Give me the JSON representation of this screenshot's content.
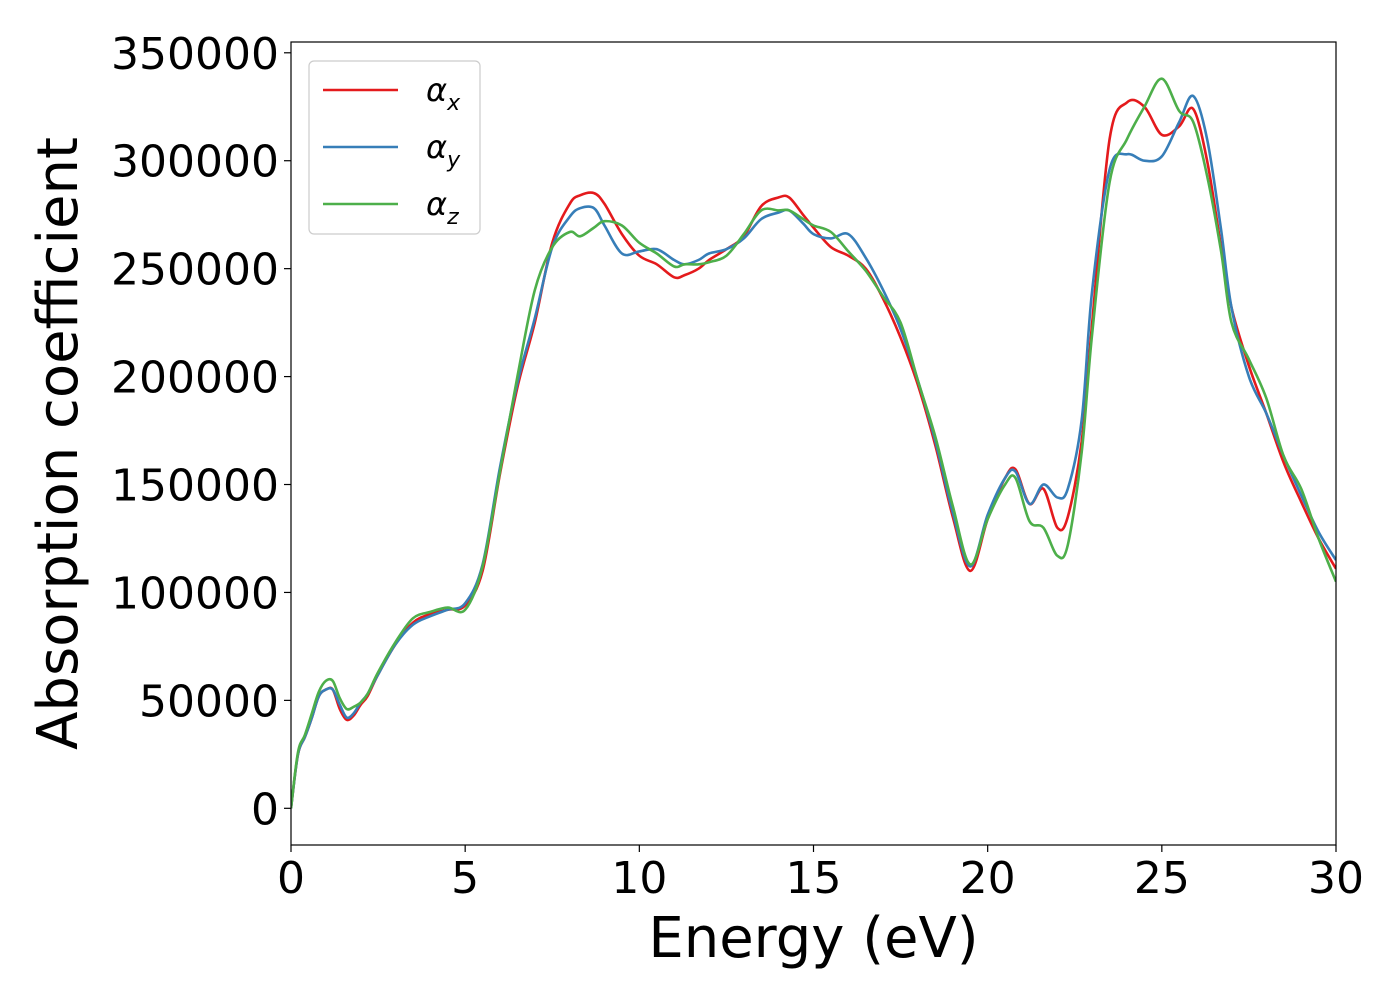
{
  "chart_data": {
    "type": "line",
    "title": "",
    "xlabel": "Energy (eV)",
    "ylabel": "Absorption coefficient",
    "xlim": [
      0,
      30
    ],
    "ylim": [
      -17000,
      355000
    ],
    "xticks": [
      0,
      5,
      10,
      15,
      20,
      25,
      30
    ],
    "yticks": [
      0,
      50000,
      100000,
      150000,
      200000,
      250000,
      300000,
      350000
    ],
    "grid": false,
    "legend": "top-left",
    "series": [
      {
        "name": "α",
        "subscript": "x",
        "color": "#e41a1c",
        "x": [
          0,
          0.2,
          0.4,
          0.6,
          0.8,
          1.0,
          1.2,
          1.4,
          1.6,
          1.8,
          2.0,
          2.2,
          2.5,
          3.0,
          3.5,
          4.0,
          4.5,
          5.0,
          5.5,
          6.0,
          6.5,
          7.0,
          7.5,
          8.0,
          8.3,
          8.7,
          9.0,
          9.5,
          10.0,
          10.5,
          11.0,
          11.3,
          11.7,
          12.0,
          12.5,
          13.0,
          13.5,
          14.0,
          14.3,
          14.7,
          15.0,
          15.5,
          16.0,
          16.5,
          17.0,
          17.5,
          18.0,
          18.5,
          19.0,
          19.5,
          20.0,
          20.5,
          20.8,
          21.2,
          21.6,
          22.0,
          22.3,
          22.7,
          23.0,
          23.5,
          24.0,
          24.5,
          25.0,
          25.5,
          25.9,
          26.3,
          26.7,
          27.0,
          27.5,
          28.0,
          28.5,
          29.0,
          29.5,
          30.0
        ],
        "values": [
          0,
          25000,
          33000,
          42000,
          52000,
          55000,
          55000,
          46000,
          41000,
          43000,
          48000,
          52000,
          62000,
          76000,
          86000,
          90000,
          92000,
          94000,
          110000,
          155000,
          195000,
          225000,
          262000,
          280000,
          284000,
          285000,
          280000,
          266000,
          256000,
          252000,
          246000,
          247000,
          250000,
          254000,
          259000,
          265000,
          279000,
          283000,
          283000,
          275000,
          269000,
          260000,
          256000,
          250000,
          236000,
          218000,
          196000,
          168000,
          135000,
          110000,
          134000,
          153000,
          157000,
          141000,
          148000,
          130000,
          135000,
          170000,
          225000,
          310000,
          327000,
          325000,
          312000,
          316000,
          324000,
          300000,
          260000,
          232000,
          205000,
          183000,
          160000,
          142000,
          125000,
          111000
        ]
      },
      {
        "name": "α",
        "subscript": "y",
        "color": "#377eb8",
        "x": [
          0,
          0.2,
          0.4,
          0.6,
          0.8,
          1.0,
          1.2,
          1.4,
          1.6,
          1.8,
          2.0,
          2.2,
          2.5,
          3.0,
          3.5,
          4.0,
          4.5,
          5.0,
          5.5,
          6.0,
          6.5,
          7.0,
          7.5,
          8.0,
          8.3,
          8.7,
          9.0,
          9.5,
          10.0,
          10.5,
          11.0,
          11.3,
          11.7,
          12.0,
          12.5,
          13.0,
          13.5,
          14.0,
          14.3,
          14.7,
          15.0,
          15.5,
          16.0,
          16.5,
          17.0,
          17.5,
          18.0,
          18.5,
          19.0,
          19.5,
          20.0,
          20.5,
          20.8,
          21.2,
          21.6,
          22.0,
          22.3,
          22.7,
          23.0,
          23.5,
          24.0,
          24.5,
          25.0,
          25.5,
          25.9,
          26.3,
          26.7,
          27.0,
          27.5,
          28.0,
          28.5,
          29.0,
          29.5,
          30.0
        ],
        "values": [
          0,
          25000,
          33000,
          42000,
          52000,
          55000,
          55000,
          48000,
          42000,
          44000,
          49000,
          53000,
          62000,
          76000,
          85000,
          89000,
          92000,
          95000,
          113000,
          158000,
          197000,
          227000,
          260000,
          274000,
          278000,
          278000,
          270000,
          257000,
          258000,
          259000,
          254000,
          252000,
          254000,
          257000,
          259000,
          264000,
          273000,
          276000,
          277000,
          271000,
          266000,
          264000,
          266000,
          255000,
          240000,
          222000,
          198000,
          170000,
          137000,
          112000,
          136000,
          153000,
          156000,
          141000,
          150000,
          144000,
          148000,
          180000,
          240000,
          296000,
          303000,
          300000,
          302000,
          318000,
          330000,
          310000,
          268000,
          232000,
          200000,
          183000,
          163000,
          145000,
          128000,
          115000
        ]
      },
      {
        "name": "α",
        "subscript": "z",
        "color": "#4daf4a",
        "x": [
          0,
          0.2,
          0.4,
          0.6,
          0.8,
          1.0,
          1.2,
          1.4,
          1.6,
          1.8,
          2.0,
          2.2,
          2.5,
          3.0,
          3.5,
          4.0,
          4.5,
          5.0,
          5.5,
          6.0,
          6.5,
          7.0,
          7.5,
          8.0,
          8.3,
          8.7,
          9.0,
          9.5,
          10.0,
          10.5,
          11.0,
          11.3,
          11.7,
          12.0,
          12.5,
          13.0,
          13.5,
          14.0,
          14.3,
          14.7,
          15.0,
          15.5,
          16.0,
          16.5,
          17.0,
          17.5,
          18.0,
          18.5,
          19.0,
          19.5,
          20.0,
          20.5,
          20.8,
          21.2,
          21.6,
          22.0,
          22.3,
          22.7,
          23.0,
          23.5,
          24.0,
          24.5,
          25.0,
          25.5,
          25.9,
          26.3,
          26.7,
          27.0,
          27.5,
          28.0,
          28.5,
          29.0,
          29.5,
          30.0
        ],
        "values": [
          0,
          26000,
          34000,
          44000,
          54000,
          59000,
          59000,
          51000,
          46000,
          47000,
          49000,
          53000,
          63000,
          77000,
          88000,
          91000,
          93000,
          92000,
          112000,
          156000,
          200000,
          240000,
          260000,
          267000,
          265000,
          269000,
          272000,
          270000,
          262000,
          257000,
          251000,
          252000,
          252000,
          253000,
          256000,
          266000,
          277000,
          277000,
          277000,
          273000,
          270000,
          267000,
          258000,
          249000,
          237000,
          225000,
          198000,
          172000,
          140000,
          113000,
          134000,
          150000,
          153000,
          133000,
          130000,
          117000,
          122000,
          165000,
          220000,
          290000,
          310000,
          325000,
          338000,
          323000,
          318000,
          293000,
          258000,
          225000,
          208000,
          190000,
          163000,
          148000,
          125000,
          105000
        ]
      }
    ]
  }
}
